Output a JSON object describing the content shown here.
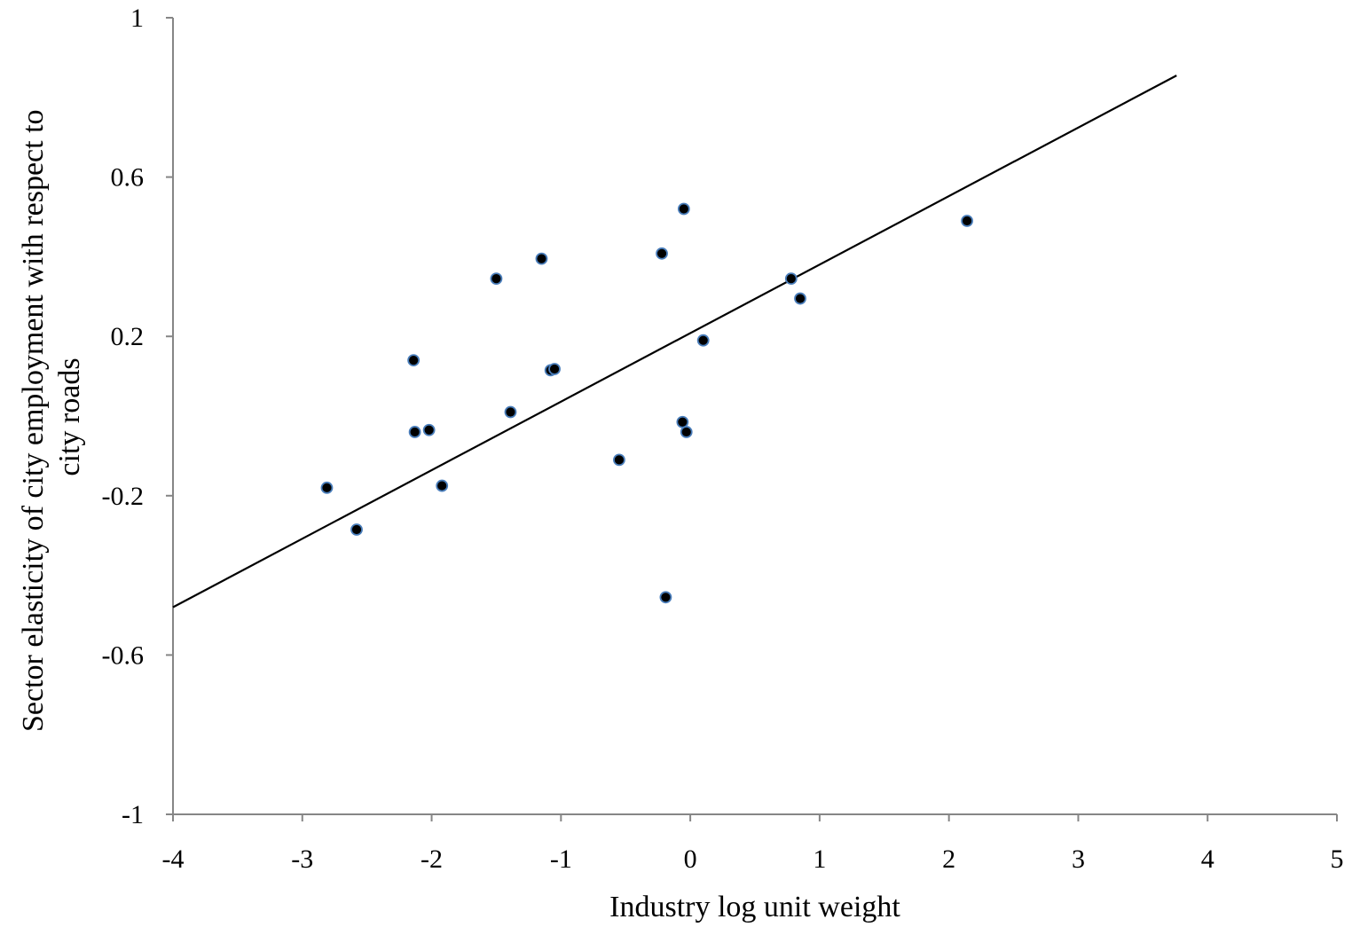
{
  "chart_data": {
    "type": "scatter",
    "title": "",
    "xlabel": "Industry log unit weight",
    "ylabel_lines": [
      "Sector elasticity of city employment with respect to",
      "city roads"
    ],
    "xlim": [
      -4,
      5
    ],
    "ylim": [
      -1,
      1
    ],
    "x_ticks": [
      -4,
      -3,
      -2,
      -1,
      0,
      1,
      2,
      3,
      4,
      5
    ],
    "x_tick_labels": [
      "-4",
      "-3",
      "-2",
      "-1",
      "0",
      "1",
      "2",
      "3",
      "4",
      "5"
    ],
    "y_ticks": [
      1,
      0.6,
      0.2,
      -0.2,
      -0.6,
      -1
    ],
    "y_tick_labels": [
      "1",
      "0.6",
      "0.2",
      "-0.2",
      "-0.6",
      "-1"
    ],
    "grid": false,
    "legend": "none",
    "point_color": "#000000",
    "point_edge_color": "#4a7ebb",
    "line_color": "#000000",
    "points": [
      {
        "x": -2.81,
        "y": -0.18
      },
      {
        "x": -2.58,
        "y": -0.285
      },
      {
        "x": -2.14,
        "y": 0.14
      },
      {
        "x": -2.13,
        "y": -0.04
      },
      {
        "x": -2.02,
        "y": -0.035
      },
      {
        "x": -1.92,
        "y": -0.175
      },
      {
        "x": -1.5,
        "y": 0.345
      },
      {
        "x": -1.39,
        "y": 0.01
      },
      {
        "x": -1.15,
        "y": 0.395
      },
      {
        "x": -1.08,
        "y": 0.115
      },
      {
        "x": -1.05,
        "y": 0.118
      },
      {
        "x": -0.55,
        "y": -0.11
      },
      {
        "x": -0.22,
        "y": 0.408
      },
      {
        "x": -0.19,
        "y": -0.455
      },
      {
        "x": -0.06,
        "y": -0.015
      },
      {
        "x": -0.05,
        "y": 0.52
      },
      {
        "x": -0.03,
        "y": -0.04
      },
      {
        "x": 0.1,
        "y": 0.19
      },
      {
        "x": 0.78,
        "y": 0.345
      },
      {
        "x": 0.85,
        "y": 0.295
      },
      {
        "x": 2.14,
        "y": 0.49
      }
    ],
    "trendline": {
      "x": [
        -4,
        3.76
      ],
      "y": [
        -0.48,
        0.855
      ]
    }
  }
}
